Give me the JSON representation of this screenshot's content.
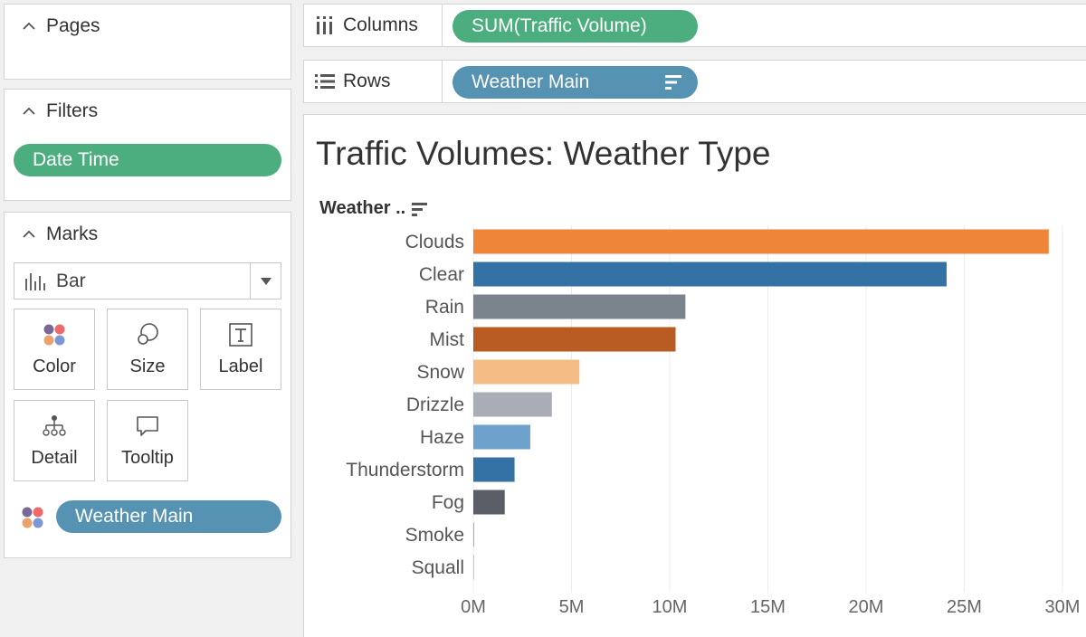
{
  "panels": {
    "pages": {
      "title": "Pages"
    },
    "filters": {
      "title": "Filters",
      "pill": "Date Time"
    },
    "marks": {
      "title": "Marks",
      "mark_type": "Bar",
      "buttons": {
        "color": "Color",
        "size": "Size",
        "label": "Label",
        "detail": "Detail",
        "tooltip": "Tooltip"
      },
      "color_field": "Weather Main"
    }
  },
  "shelves": {
    "columns": {
      "label": "Columns",
      "pill": "SUM(Traffic Volume)"
    },
    "rows": {
      "label": "Rows",
      "pill": "Weather Main"
    }
  },
  "viz": {
    "title": "Traffic Volumes: Weather Type",
    "row_header": "Weather .."
  },
  "colors": {
    "pill_green": "#4cae7f",
    "pill_blue": "#5692b2"
  },
  "chart_data": {
    "type": "bar",
    "orientation": "horizontal",
    "categories": [
      "Clouds",
      "Clear",
      "Rain",
      "Mist",
      "Snow",
      "Drizzle",
      "Haze",
      "Thunderstorm",
      "Fog",
      "Smoke",
      "Squall"
    ],
    "values": [
      29300000,
      24100000,
      10800000,
      10300000,
      5400000,
      4000000,
      2900000,
      2100000,
      1600000,
      40000,
      10000
    ],
    "colors": [
      "#ee8539",
      "#3472a6",
      "#7b838c",
      "#b85c24",
      "#f4bd85",
      "#a9adb6",
      "#6ea2cc",
      "#3472a6",
      "#5a5f67",
      "#a9adb6",
      "#f4bd85"
    ],
    "xlim": [
      0,
      30000000
    ],
    "ticks": [
      0,
      5000000,
      10000000,
      15000000,
      20000000,
      25000000,
      30000000
    ],
    "tick_labels": [
      "0M",
      "5M",
      "10M",
      "15M",
      "20M",
      "25M",
      "30M"
    ],
    "grid": true
  }
}
